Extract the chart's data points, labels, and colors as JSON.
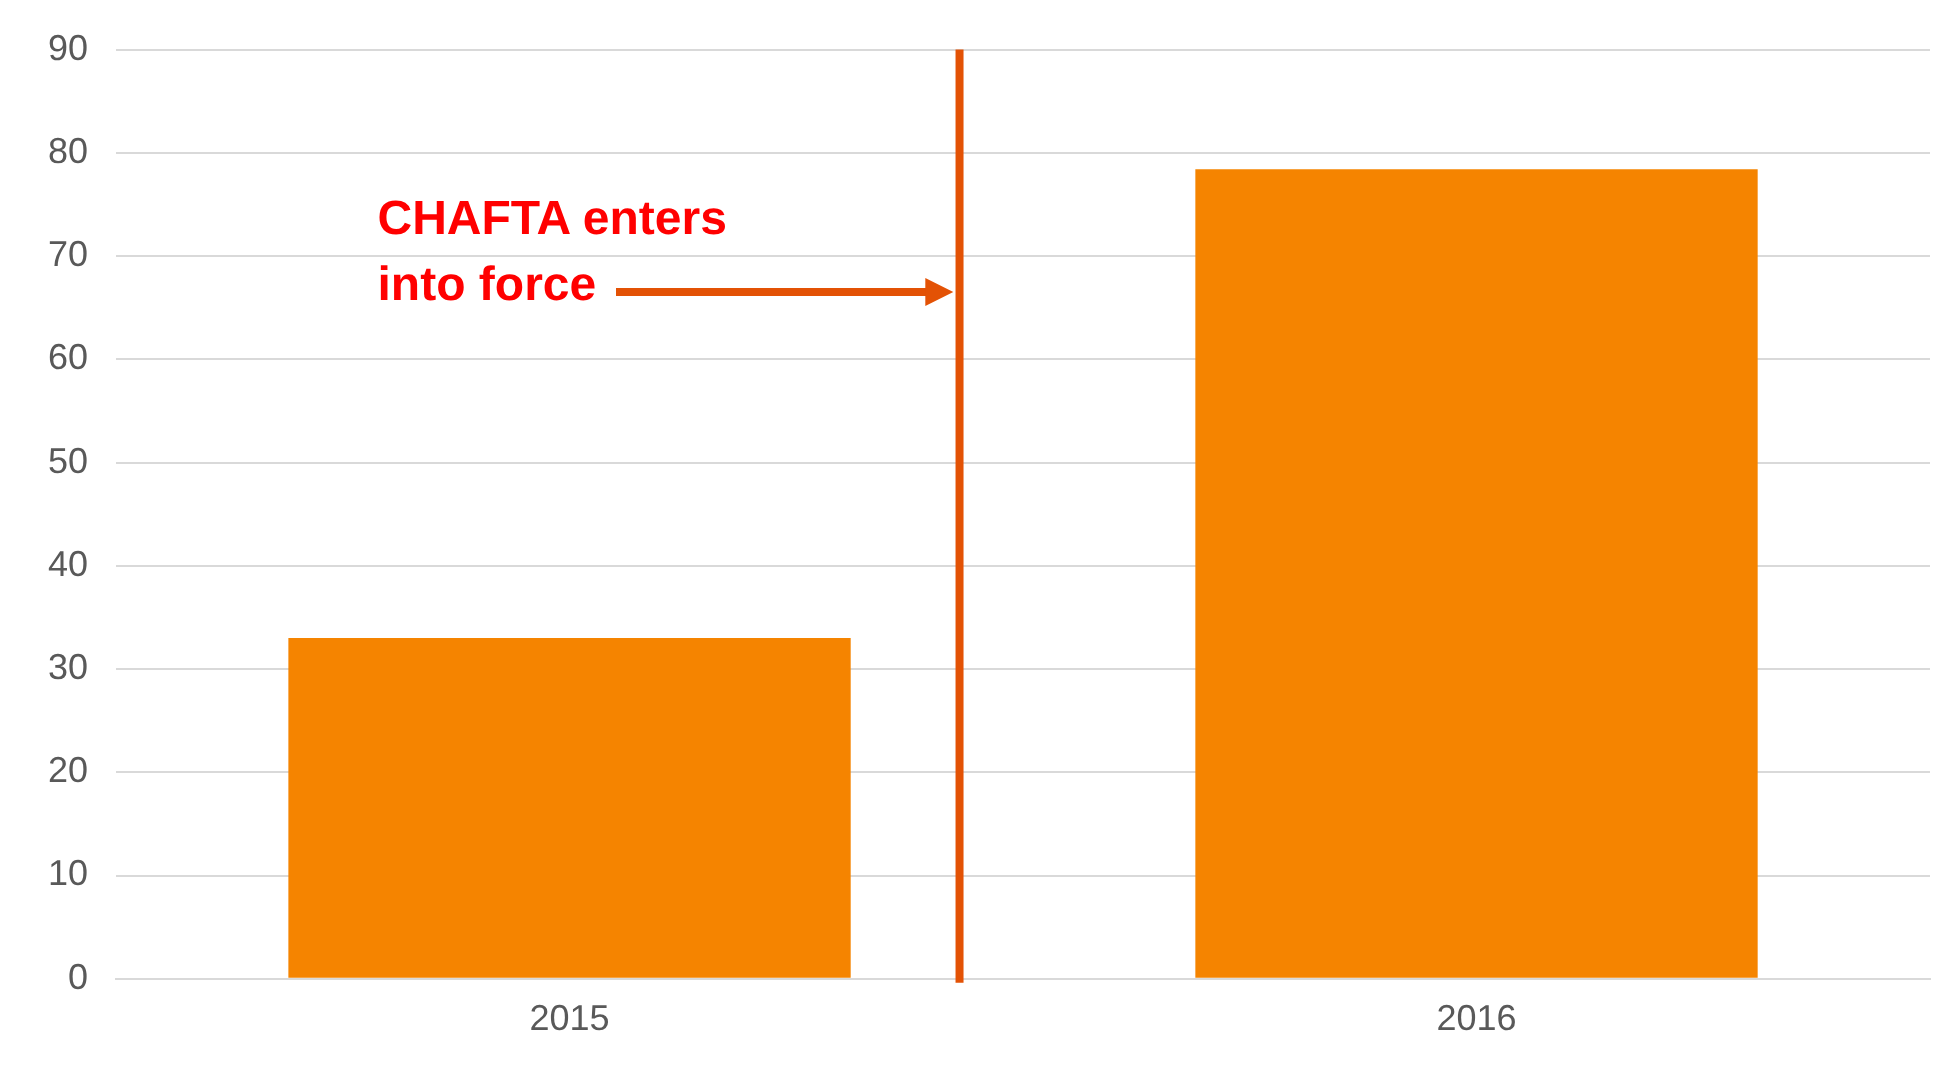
{
  "chart_data": {
    "type": "bar",
    "x": [
      2015,
      2016
    ],
    "values": [
      33,
      78.4
    ],
    "color": "#f58400",
    "xlim": [
      2014.5,
      2016.5
    ],
    "xticks": [
      2015,
      2016
    ],
    "ylim": [
      0,
      90
    ],
    "yticks": [
      0,
      10,
      20,
      30,
      40,
      50,
      60,
      70,
      80,
      90
    ],
    "grid": "y",
    "ref_lines": [
      {
        "axis": "x",
        "value": 2015.43,
        "color": "#e35205"
      }
    ],
    "annotations": [
      "CHAFTA enters\ninto force"
    ]
  }
}
